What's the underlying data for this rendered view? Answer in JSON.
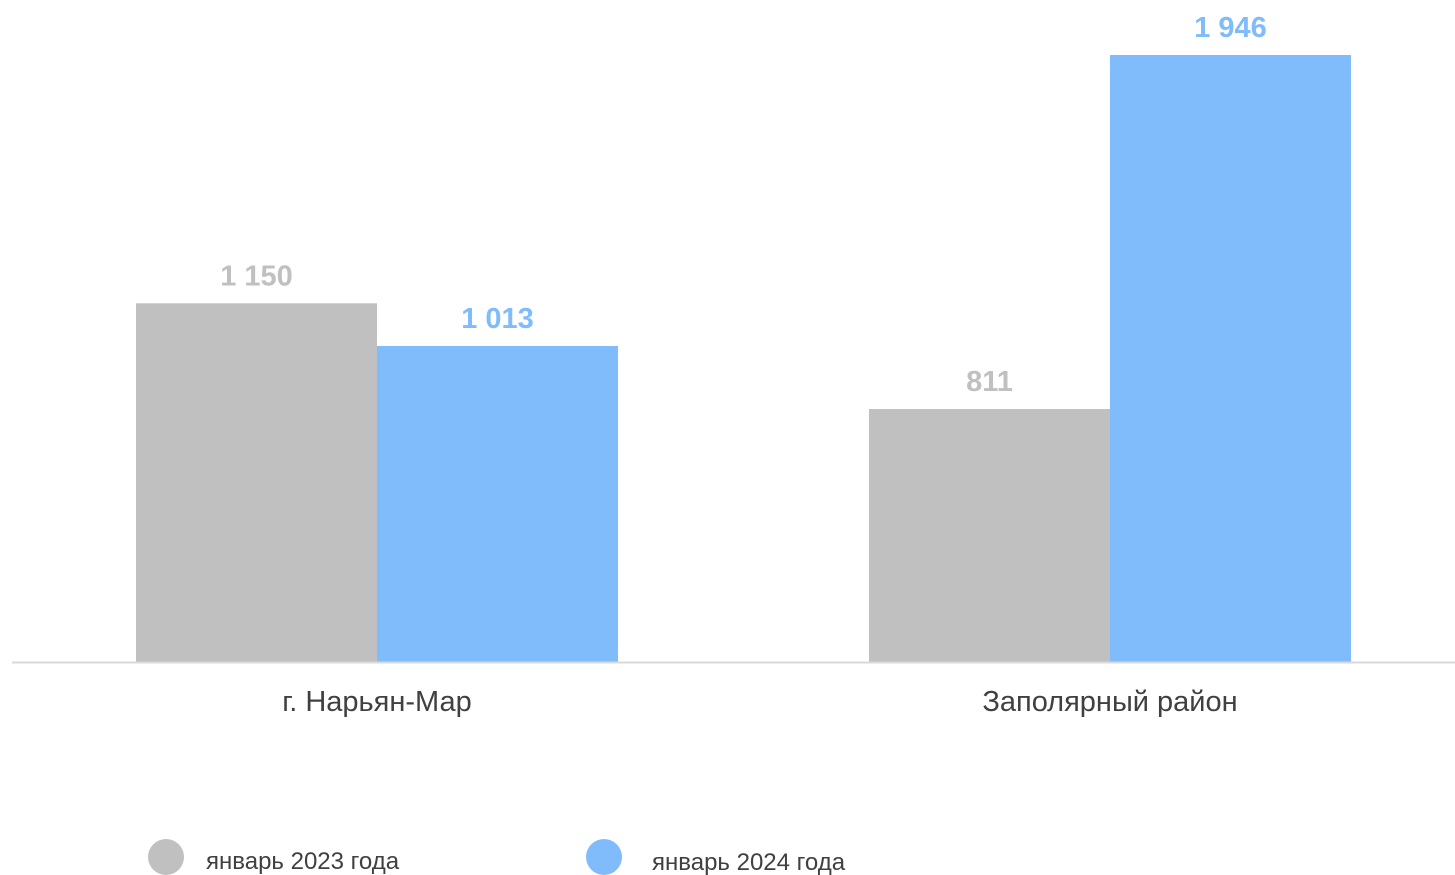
{
  "chart_data": {
    "type": "bar",
    "title": "",
    "xlabel": "",
    "ylabel": "",
    "categories": [
      "г. Нарьян-Мар",
      "Заполярный район"
    ],
    "series": [
      {
        "name": "январь 2023 года",
        "color": "#c0c0c0",
        "values": [
          1150,
          811
        ],
        "labels": [
          "1 150",
          "811"
        ]
      },
      {
        "name": "январь 2024 года",
        "color": "#80bcfb",
        "values": [
          1013,
          1946
        ],
        "labels": [
          "1 013",
          "1 946"
        ]
      }
    ],
    "ylim": [
      0,
      1946
    ],
    "grid": false,
    "legend_position": "bottom-left",
    "axis_line_color": "#d9d9d9"
  }
}
